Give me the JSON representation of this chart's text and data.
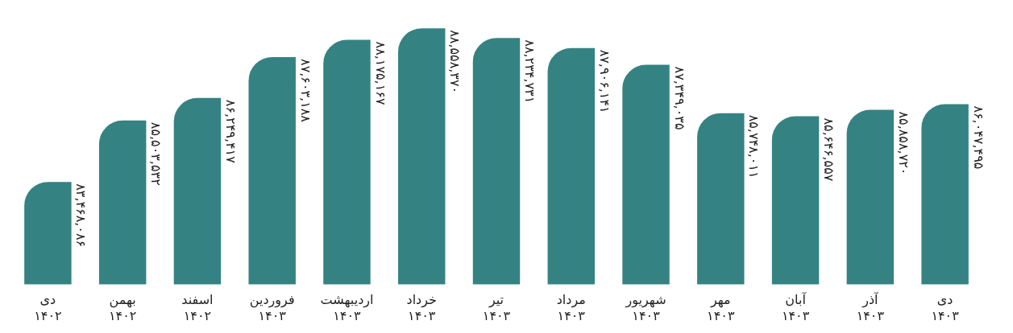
{
  "chart_data": {
    "type": "bar",
    "categories": [
      "دی ۱۴۰۲",
      "بهمن ۱۴۰۲",
      "اسفند ۱۴۰۲",
      "فروردین ۱۴۰۳",
      "اردیبهشت ۱۴۰۳",
      "خرداد ۱۴۰۳",
      "تیر ۱۴۰۳",
      "مرداد ۱۴۰۳",
      "شهریور ۱۴۰۳",
      "مهر ۱۴۰۳",
      "آبان ۱۴۰۳",
      "آذر ۱۴۰۳",
      "دی ۱۴۰۳"
    ],
    "values": [
      83468086,
      85503532,
      86249417,
      87603188,
      88175167,
      88558370,
      88234731,
      87906141,
      87349035,
      85748011,
      85646557,
      85858720,
      86047495
    ],
    "value_labels": [
      "۸۳,۴۶۸,۰۸۶",
      "۸۵,۵۰۳,۵۳۲",
      "۸۶,۲۴۹,۴۱۷",
      "۸۷,۶۰۳,۱۸۸",
      "۸۸,۱۷۵,۱۶۷",
      "۸۸,۵۵۸,۳۷۰",
      "۸۸,۲۳۴,۷۳۱",
      "۸۷,۹۰۶,۱۴۱",
      "۸۷,۳۴۹,۰۳۵",
      "۸۵,۷۴۸,۰۱۱",
      "۸۵,۶۴۶,۵۵۷",
      "۸۵,۸۵۸,۷۲۰",
      "۸۶,۰۴۷,۴۹۵"
    ],
    "color": "#348382",
    "tick_labels": "x",
    "grid": false,
    "legend": false
  }
}
